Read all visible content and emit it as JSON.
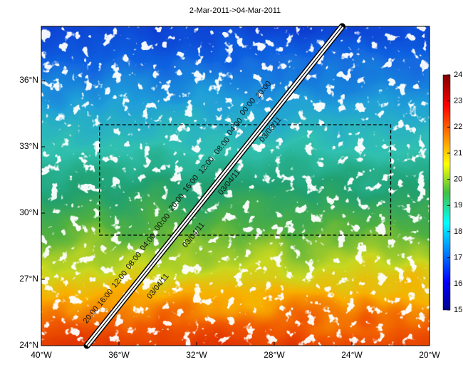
{
  "title": "2-Mar-2011->04-Mar-2011",
  "map": {
    "xlim": [
      -40,
      -20
    ],
    "ylim": [
      24,
      38.45
    ],
    "xticks": [
      {
        "value": -40,
        "label": "40°W"
      },
      {
        "value": -36,
        "label": "36°W"
      },
      {
        "value": -32,
        "label": "32°W"
      },
      {
        "value": -28,
        "label": "28°W"
      },
      {
        "value": -24,
        "label": "24°W"
      },
      {
        "value": -20,
        "label": "20°W"
      }
    ],
    "yticks": [
      {
        "value": 24,
        "label": "24°N"
      },
      {
        "value": 27,
        "label": "27°N"
      },
      {
        "value": 30,
        "label": "30°N"
      },
      {
        "value": 33,
        "label": "33°N"
      },
      {
        "value": 36,
        "label": "36°N"
      }
    ],
    "region": {
      "lon": [
        -37,
        -22
      ],
      "lat": [
        29,
        34
      ]
    },
    "track": {
      "lon": [
        -37.65,
        -24.5
      ],
      "lat": [
        24,
        38.45
      ]
    },
    "track_labels": [
      "20:00",
      "00:00",
      "04:00",
      "03/03/11",
      "08:00",
      "12:00",
      "16:00",
      "03/04/11",
      "20:00",
      "00:00",
      "03/04/11",
      "04:00",
      "08:00",
      "12:00",
      "03/04/11",
      "16:00",
      "20:00"
    ]
  },
  "colorbar": {
    "lim": [
      15,
      24
    ],
    "ticks": [
      15,
      16,
      17,
      18,
      19,
      20,
      21,
      22,
      23,
      24
    ]
  }
}
